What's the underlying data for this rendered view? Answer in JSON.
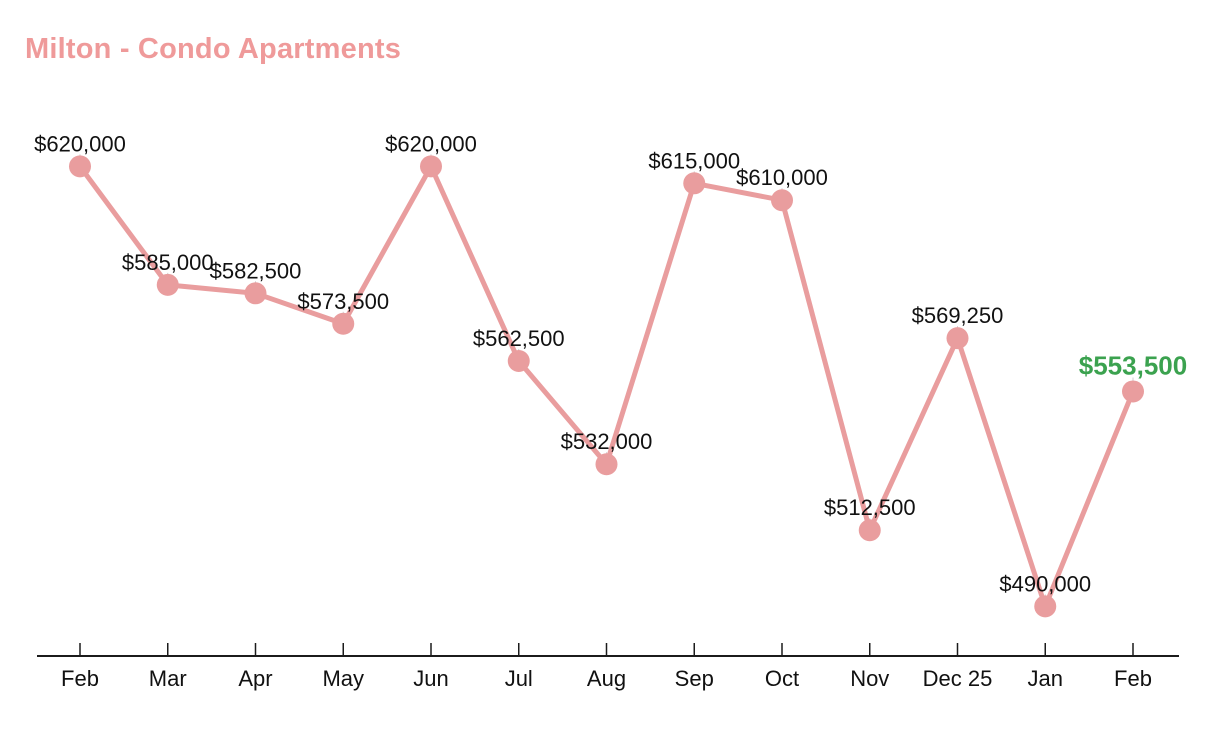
{
  "chart_data": {
    "type": "line",
    "title": "Milton - Condo Apartments",
    "x": [
      "Feb",
      "Mar",
      "Apr",
      "May",
      "Jun",
      "Jul",
      "Aug",
      "Sep",
      "Oct",
      "Nov",
      "Dec 25",
      "Jan",
      "Feb"
    ],
    "series": [
      {
        "name": "Milton - Condo Apartments",
        "values": [
          620000,
          585000,
          582500,
          573500,
          620000,
          562500,
          532000,
          615000,
          610000,
          512500,
          569250,
          490000,
          553500
        ],
        "point_labels": [
          "$620,000",
          "$585,000",
          "$582,500",
          "$573,500",
          "$620,000",
          "$562,500",
          "$532,000",
          "$615,000",
          "$610,000",
          "$512,500",
          "$569,250",
          "$490,000",
          "$553,500"
        ]
      }
    ],
    "highlighted_point_index": 12,
    "highlighted_point_label": "$553,500",
    "ylim": [
      478000,
      634000
    ],
    "grid": "off",
    "legend": "none"
  },
  "colors": {
    "title": "#ef9a9a",
    "line": "#e99d9e",
    "marker": "#e99d9e",
    "point_label": "#111111",
    "highlight_label": "#3ba24f",
    "axis": "#1b1b1b",
    "month_label": "#111111",
    "leader_line": "#cfcfcf"
  }
}
